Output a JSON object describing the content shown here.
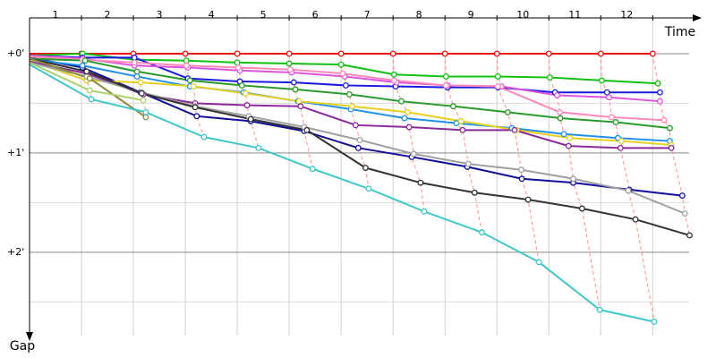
{
  "chart_data": {
    "type": "line",
    "x_label": "Time",
    "y_label": "Gap",
    "xlim": [
      0,
      12.84
    ],
    "ylim": [
      -0.36,
      2.84
    ],
    "xticks": [
      1,
      2,
      3,
      4,
      5,
      6,
      7,
      8,
      9,
      10,
      11,
      12
    ],
    "yticks": [
      {
        "value": 0,
        "label": "+0'"
      },
      {
        "value": 1,
        "label": "+1'"
      },
      {
        "value": 2,
        "label": "+2'"
      }
    ],
    "yminor": [
      0.5,
      1.5,
      2.5
    ],
    "grid": true,
    "lap_lines": true,
    "series": [
      {
        "color": "#ee1111",
        "x": [
          0,
          1,
          2,
          3,
          4,
          5,
          6,
          7,
          8,
          9,
          10,
          11,
          12
        ],
        "y": [
          0,
          0,
          0,
          0,
          0,
          0,
          0,
          0,
          0,
          0,
          0,
          0,
          0
        ]
      },
      {
        "color": "#11c011",
        "x": [
          0,
          1.02,
          2.02,
          3.02,
          4,
          5,
          6,
          7.02,
          8.02,
          9.02,
          10.02,
          11.02,
          12.1
        ],
        "y": [
          0.02,
          0,
          0.06,
          0.07,
          0.09,
          0.1,
          0.11,
          0.21,
          0.23,
          0.23,
          0.24,
          0.27,
          0.3
        ]
      },
      {
        "color": "#1a1ae0",
        "x": [
          0,
          1.02,
          2.02,
          3.05,
          4.05,
          5.09,
          6.09,
          7.05,
          8.05,
          9.02,
          10.12,
          11.12,
          12.14
        ],
        "y": [
          0.02,
          0.04,
          0.04,
          0.25,
          0.28,
          0.29,
          0.32,
          0.33,
          0.34,
          0.34,
          0.39,
          0.39,
          0.39
        ]
      },
      {
        "color": "#10109a",
        "x": [
          0,
          1.02,
          2.14,
          3.22,
          4.26,
          5.29,
          6.33,
          7.36,
          8.43,
          9.48,
          10.47,
          11.55,
          12.57
        ],
        "y": [
          0.04,
          0.14,
          0.39,
          0.63,
          0.68,
          0.78,
          0.95,
          1.04,
          1.14,
          1.26,
          1.3,
          1.37,
          1.43
        ]
      },
      {
        "color": "#dd55dd",
        "x": [
          0,
          1.03,
          2.02,
          3.05,
          4.05,
          5.05,
          6.07,
          7.07,
          8.05,
          9.09,
          10.16,
          11.16,
          12.14
        ],
        "y": [
          0.02,
          0.05,
          0.12,
          0.14,
          0.17,
          0.19,
          0.23,
          0.29,
          0.32,
          0.33,
          0.42,
          0.44,
          0.48
        ]
      },
      {
        "color": "#ff88bb",
        "x": [
          0,
          1.02,
          2.02,
          3.02,
          4.02,
          5.02,
          6.03,
          7.02,
          8.02,
          9.02,
          10.21,
          11.21,
          12.22
        ],
        "y": [
          0.03,
          0.06,
          0.09,
          0.12,
          0.14,
          0.16,
          0.2,
          0.27,
          0.32,
          0.33,
          0.59,
          0.64,
          0.67
        ]
      },
      {
        "color": "#2a9a2a",
        "x": [
          0,
          1.07,
          2.07,
          3.09,
          4.09,
          5.12,
          6.16,
          7.16,
          8.16,
          9.21,
          10.22,
          11.29,
          12.33
        ],
        "y": [
          0.05,
          0.07,
          0.18,
          0.27,
          0.32,
          0.36,
          0.41,
          0.48,
          0.53,
          0.59,
          0.65,
          0.69,
          0.75
        ]
      },
      {
        "color": "#2090e8",
        "x": [
          0,
          1.02,
          2.07,
          3.09,
          4.12,
          5.17,
          6.19,
          7.22,
          8.22,
          9.29,
          10.29,
          11.33,
          12.33
        ],
        "y": [
          0.06,
          0.12,
          0.23,
          0.33,
          0.39,
          0.48,
          0.56,
          0.65,
          0.7,
          0.75,
          0.81,
          0.85,
          0.88
        ]
      },
      {
        "color": "#e8d020",
        "x": [
          0,
          1.1,
          2.14,
          3.16,
          4.16,
          5.19,
          6.21,
          7.28,
          8.31,
          9.38,
          10.4,
          11.4,
          12.36
        ],
        "y": [
          0.07,
          0.27,
          0.29,
          0.33,
          0.4,
          0.48,
          0.53,
          0.59,
          0.68,
          0.77,
          0.85,
          0.88,
          0.92
        ]
      },
      {
        "color": "#8a2a9a",
        "x": [
          0,
          1.1,
          2.19,
          3.19,
          4.19,
          5.22,
          6.28,
          7.31,
          8.34,
          9.34,
          10.38,
          11.38,
          12.36
        ],
        "y": [
          0.08,
          0.2,
          0.41,
          0.5,
          0.52,
          0.53,
          0.72,
          0.74,
          0.77,
          0.77,
          0.93,
          0.95,
          0.95
        ]
      },
      {
        "color": "#a0a0a0",
        "x": [
          0,
          1.1,
          2.16,
          3.19,
          4.22,
          5.29,
          6.36,
          7.4,
          8.45,
          9.47,
          10.47,
          11.53,
          12.62
        ],
        "y": [
          0.09,
          0.23,
          0.39,
          0.53,
          0.63,
          0.74,
          0.87,
          1.01,
          1.11,
          1.17,
          1.26,
          1.38,
          1.61
        ]
      },
      {
        "color": "#333333",
        "x": [
          0,
          1.1,
          2.16,
          3.19,
          4.26,
          5.34,
          6.47,
          7.53,
          8.57,
          9.6,
          10.64,
          11.67,
          12.71
        ],
        "y": [
          0.05,
          0.18,
          0.4,
          0.54,
          0.66,
          0.77,
          1.15,
          1.3,
          1.4,
          1.47,
          1.56,
          1.67,
          1.83
        ]
      },
      {
        "color": "#8a8a40",
        "x": [
          0,
          1.16,
          2.24
        ],
        "y": [
          0.05,
          0.25,
          0.64
        ]
      },
      {
        "color": "#b0d070",
        "x": [
          0,
          1.16,
          2.19
        ],
        "y": [
          0.09,
          0.37,
          0.47
        ]
      },
      {
        "color": "#40c8c8",
        "x": [
          0,
          1.19,
          2.24,
          3.36,
          4.41,
          5.45,
          6.53,
          7.6,
          8.71,
          9.81,
          10.98,
          12.03
        ],
        "y": [
          0.11,
          0.46,
          0.59,
          0.84,
          0.95,
          1.16,
          1.36,
          1.59,
          1.8,
          2.1,
          2.58,
          2.7
        ]
      }
    ]
  }
}
